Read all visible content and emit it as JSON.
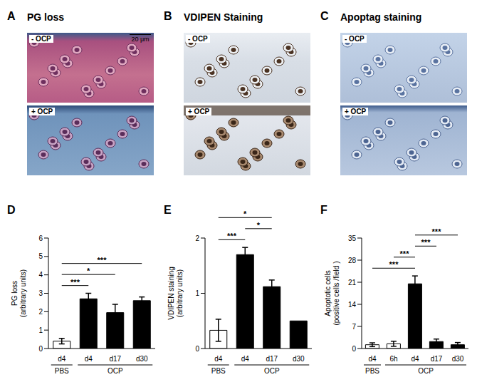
{
  "panels": [
    {
      "label": "A",
      "title": "PG loss",
      "images": [
        "- OCP",
        "+ OCP"
      ],
      "scale_bar": "20 μm"
    },
    {
      "label": "B",
      "title": "VDIPEN Staining",
      "images": [
        "- OCP",
        "+ OCP"
      ]
    },
    {
      "label": "C",
      "title": "Apoptag staining",
      "images": [
        "- OCP",
        "+ OCP"
      ]
    }
  ],
  "chart_data": [
    {
      "panel": "D",
      "type": "bar",
      "y_label": [
        "PG loss",
        "(arbitrary units)"
      ],
      "categories": [
        "d4",
        "d4",
        "d17",
        "d30"
      ],
      "values": [
        0.4,
        2.7,
        1.95,
        2.6
      ],
      "errors": [
        0.15,
        0.3,
        0.45,
        0.2
      ],
      "colors": [
        "#ffffff",
        "#000000",
        "#000000",
        "#000000"
      ],
      "groups": [
        {
          "label": "PBS",
          "from": 0,
          "to": 0
        },
        {
          "label": "OCP",
          "from": 1,
          "to": 3
        }
      ],
      "significance": [
        {
          "from": 0,
          "to": 1,
          "label": "***"
        },
        {
          "from": 0,
          "to": 2,
          "label": "*"
        },
        {
          "from": 0,
          "to": 3,
          "label": "***"
        }
      ],
      "ylim": [
        0,
        6
      ],
      "yticks": [
        0,
        1,
        2,
        3,
        4,
        5,
        6
      ]
    },
    {
      "panel": "E",
      "type": "bar",
      "y_label": [
        "VDIPEN staining",
        "(arbitrary units)"
      ],
      "categories": [
        "d4",
        "d4",
        "d17",
        "d30"
      ],
      "values": [
        0.33,
        1.7,
        1.12,
        0.5
      ],
      "errors": [
        0.2,
        0.13,
        0.12,
        null
      ],
      "colors": [
        "#ffffff",
        "#000000",
        "#000000",
        "#000000"
      ],
      "groups": [
        {
          "label": "PBS",
          "from": 0,
          "to": 0
        },
        {
          "label": "OCP",
          "from": 1,
          "to": 3
        }
      ],
      "significance": [
        {
          "from": 0,
          "to": 1,
          "label": "***"
        },
        {
          "from": 1,
          "to": 2,
          "label": "*"
        },
        {
          "from": 0,
          "to": 2,
          "label": "*"
        }
      ],
      "ylim": [
        0,
        2
      ],
      "yticks": [
        0,
        1,
        2
      ]
    },
    {
      "panel": "F",
      "type": "bar",
      "y_label": [
        "Apoptotic cells",
        "(positive cells /field )"
      ],
      "categories": [
        "d4",
        "6h",
        "d4",
        "d17",
        "d30"
      ],
      "values": [
        1.2,
        1.5,
        20.5,
        2.2,
        1.2
      ],
      "errors": [
        0.6,
        0.8,
        2.5,
        0.8,
        0.7
      ],
      "colors": [
        "#ffffff",
        "#ffffff",
        "#000000",
        "#000000",
        "#000000"
      ],
      "groups": [
        {
          "label": "PBS",
          "from": 0,
          "to": 0
        },
        {
          "label": "OCP",
          "from": 1,
          "to": 4
        }
      ],
      "significance": [
        {
          "from": 0,
          "to": 2,
          "label": "***"
        },
        {
          "from": 1,
          "to": 2,
          "label": "***"
        },
        {
          "from": 2,
          "to": 3,
          "label": "***"
        },
        {
          "from": 2,
          "to": 4,
          "label": "***"
        }
      ],
      "ylim": [
        0,
        35
      ],
      "yticks": [
        0,
        7,
        14,
        21,
        28,
        35
      ]
    }
  ]
}
